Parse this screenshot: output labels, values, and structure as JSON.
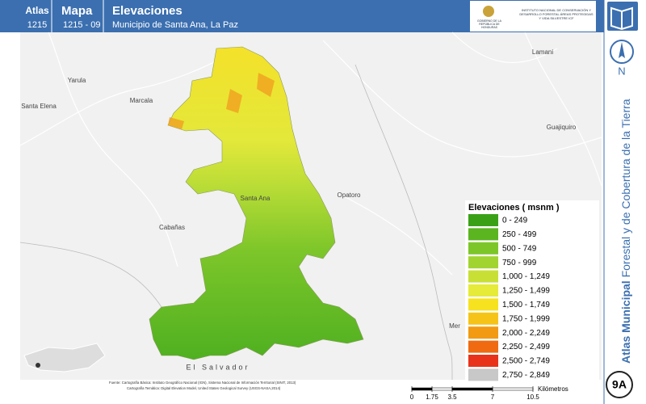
{
  "header": {
    "atlas_label": "Atlas",
    "atlas_number": "1215",
    "map_label": "Mapa",
    "map_number": "1215 - 09",
    "title": "Elevaciones",
    "subtitle": "Municipio de Santa Ana, La Paz",
    "logo_left": "GOBIERNO DE LA REPÚBLICA DE HONDURAS",
    "logo_right": "INSTITUTO NACIONAL DE CONSERVACIÓN Y DESARROLLO FORESTAL ÁREAS PROTEGIDAS Y VIDA SILVESTRE ICF"
  },
  "places": [
    "Yarula",
    "Marcala",
    "Santa Elena",
    "Guajiquiro",
    "Lamani",
    "Opatoro",
    "Santa Ana",
    "Cabañas",
    "El Salvador",
    "Mer"
  ],
  "legend": {
    "title": "Elevaciones ( msnm )",
    "items": [
      {
        "label": "0 - 249",
        "color": "#3aa117"
      },
      {
        "label": "250 - 499",
        "color": "#5ab520"
      },
      {
        "label": "500 - 749",
        "color": "#7dc62a"
      },
      {
        "label": "750 - 999",
        "color": "#a2d431"
      },
      {
        "label": "1,000 - 1,249",
        "color": "#c8e036"
      },
      {
        "label": "1,250 - 1,499",
        "color": "#e6ea38"
      },
      {
        "label": "1,500 - 1,749",
        "color": "#f6e21e"
      },
      {
        "label": "1,750 - 1,999",
        "color": "#f6c418"
      },
      {
        "label": "2,000 - 2,249",
        "color": "#f29a12"
      },
      {
        "label": "2,250 - 2,499",
        "color": "#ef6a10"
      },
      {
        "label": "2,500 - 2,749",
        "color": "#e8321a"
      },
      {
        "label": "2,750 - 2,849",
        "color": "#c8c8c8"
      }
    ]
  },
  "source": {
    "line1": "Fuente: Cartografía Básica: Instituto Geográfico Nacional (IGN), Sistema Nacional de Información Territorial (SINIT, 2013)",
    "line2": "Cartografía Temática: Digital Elevation Model, United States Geological Survey (USGS-NASA,2014)"
  },
  "scale_bar": {
    "ticks": [
      0,
      1.75,
      3.5,
      7,
      10.5
    ],
    "unit": "Kilómetros"
  },
  "sidebar": {
    "north": "N",
    "series_bold": "Atlas Municipal",
    "series_rest": "Forestal y de Cobertura de la Tierra",
    "page": "9A"
  }
}
